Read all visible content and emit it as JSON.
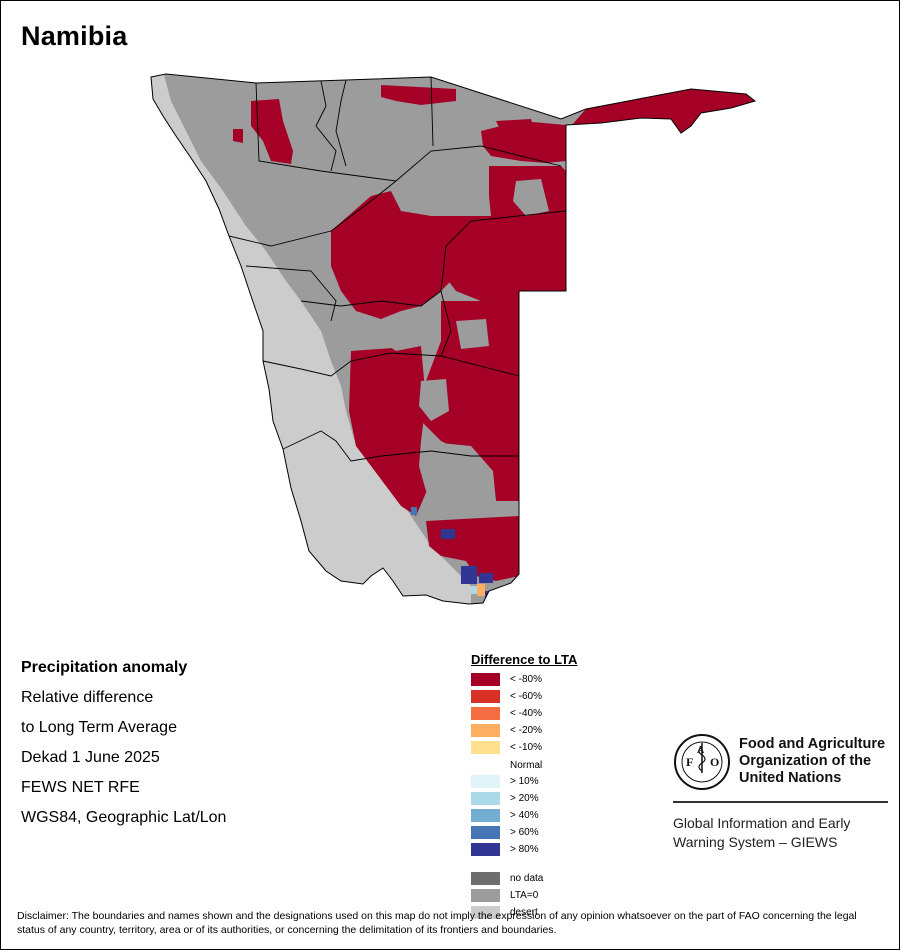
{
  "map": {
    "title": "Namibia"
  },
  "info": {
    "line1": "Precipitation anomaly",
    "line2": "Relative difference",
    "line3": "to Long Term Average",
    "line4": "Dekad 1 June 2025",
    "line5": "FEWS NET RFE",
    "line6": "WGS84, Geographic Lat/Lon"
  },
  "legend": {
    "title": "Difference to LTA",
    "items": [
      {
        "label": "< -80%",
        "color": "#a50026"
      },
      {
        "label": "< -60%",
        "color": "#d73027"
      },
      {
        "label": "< -40%",
        "color": "#f46d43"
      },
      {
        "label": "< -20%",
        "color": "#fdae61"
      },
      {
        "label": "< -10%",
        "color": "#fee090"
      },
      {
        "label": "Normal",
        "color": "#ffffff"
      },
      {
        "label": "> 10%",
        "color": "#e0f3f8"
      },
      {
        "label": "> 20%",
        "color": "#abd9e9"
      },
      {
        "label": "> 40%",
        "color": "#74add1"
      },
      {
        "label": "> 60%",
        "color": "#4575b4"
      },
      {
        "label": "> 80%",
        "color": "#313695"
      },
      {
        "label": "no data",
        "color": "#6e6e6e"
      },
      {
        "label": "LTA=0",
        "color": "#9c9c9c"
      },
      {
        "label": "desert",
        "color": "#cccccc"
      }
    ]
  },
  "colors": {
    "deficit": "#a50026",
    "lta_zero": "#9c9c9c",
    "desert": "#cccccc",
    "wet": "#313695"
  },
  "fao": {
    "name_line1": "Food and Agriculture",
    "name_line2": "Organization of the",
    "name_line3": "United Nations",
    "logo_text": "FAO",
    "logo_motto": "FIAT PANIS",
    "giews_line1": "Global Information and Early",
    "giews_line2": "Warning System – GIEWS"
  },
  "disclaimer": "Disclaimer: The boundaries and names shown and the designations used on this map do not imply the expression of any opinion whatsoever on the part of FAO concerning the legal status of any country, territory, area or of its authorities, or concerning the delimitation of its frontiers and boundaries."
}
